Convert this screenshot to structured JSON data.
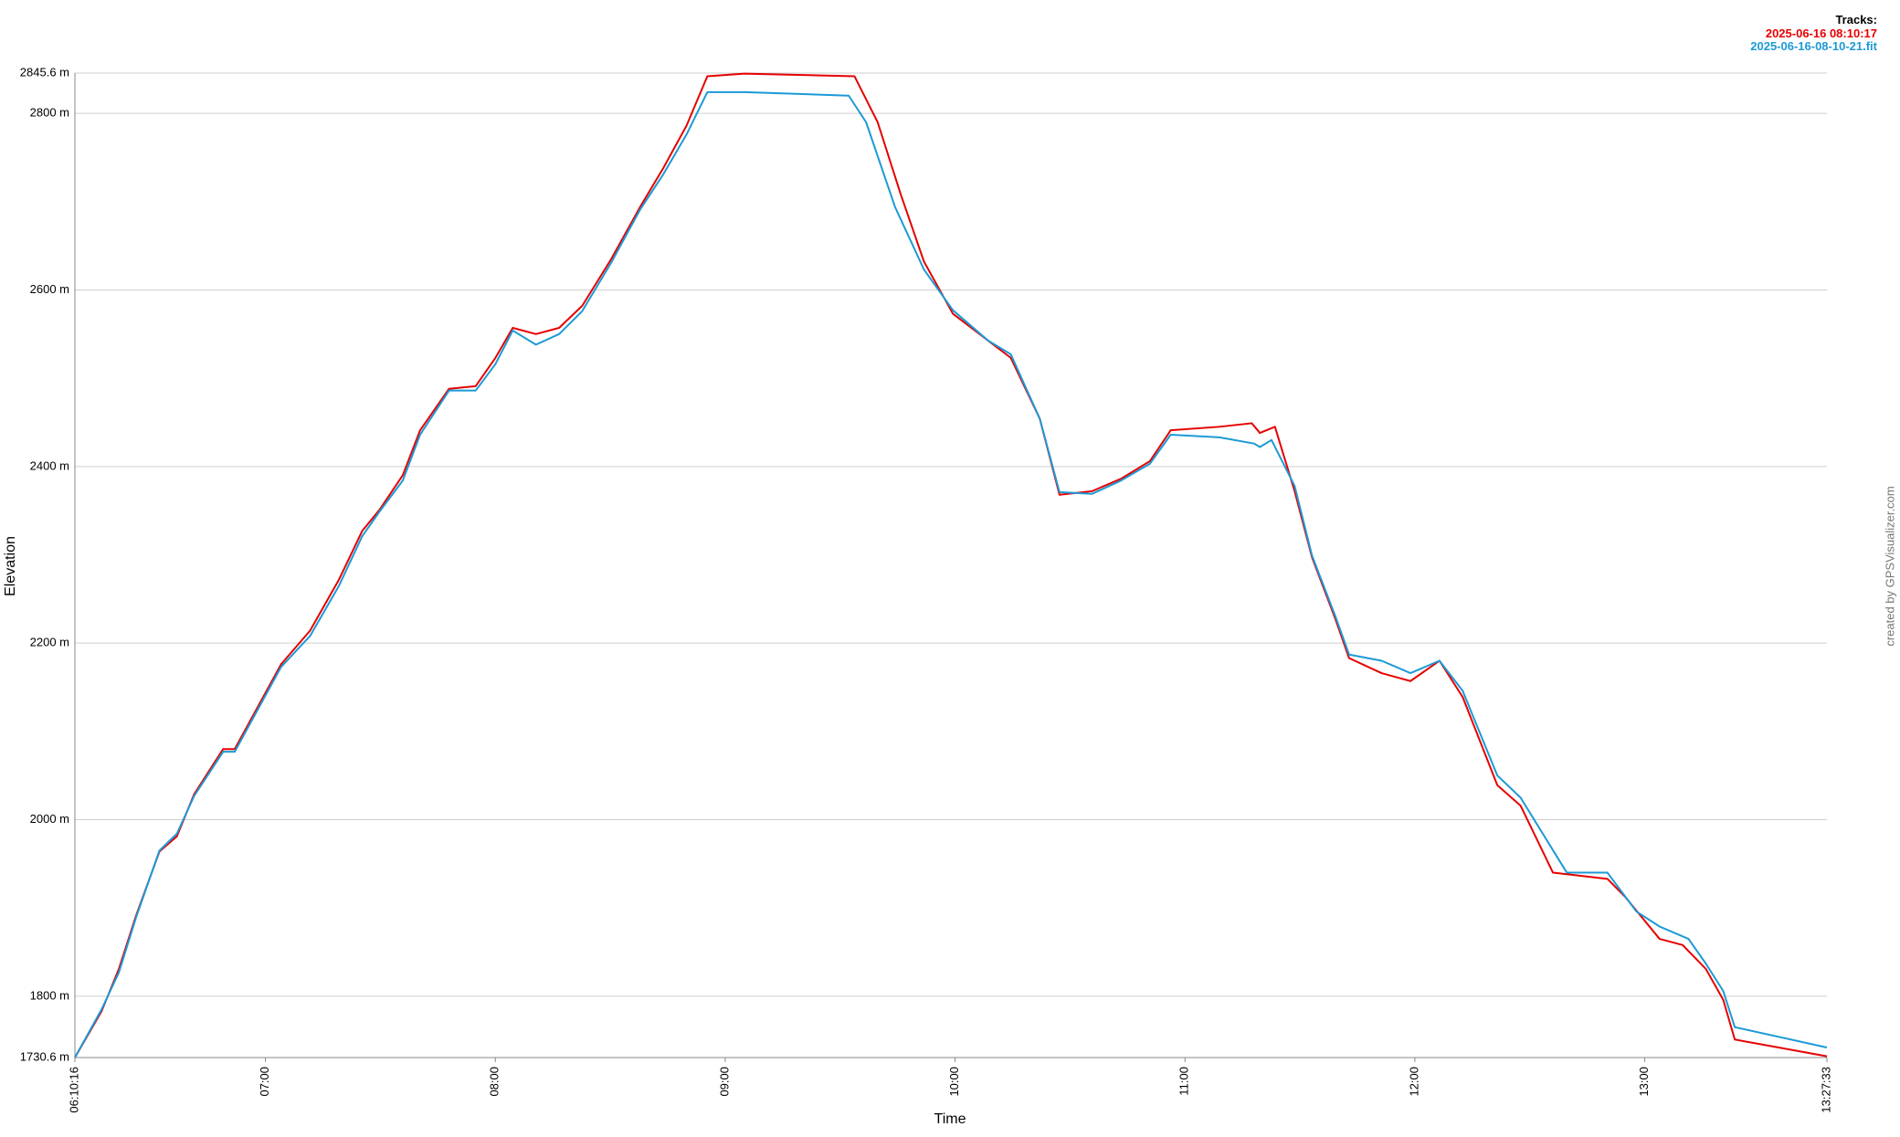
{
  "chart_data": {
    "type": "line",
    "x_label": "Time",
    "y_label": "Elevation",
    "legend_title": "Tracks:",
    "credit": "created by GPSVisualizer.com",
    "legend": "top-right",
    "grid": true,
    "xlim": [
      22216,
      49653
    ],
    "ylim": [
      1730.6,
      2845.6
    ],
    "xticks": [
      {
        "value": 22216,
        "label": "06:10:16"
      },
      {
        "value": 25200,
        "label": "07:00"
      },
      {
        "value": 28800,
        "label": "08:00"
      },
      {
        "value": 32400,
        "label": "09:00"
      },
      {
        "value": 36000,
        "label": "10:00"
      },
      {
        "value": 39600,
        "label": "11:00"
      },
      {
        "value": 43200,
        "label": "12:00"
      },
      {
        "value": 46800,
        "label": "13:00"
      },
      {
        "value": 49653,
        "label": "13:27:33"
      }
    ],
    "yticks": [
      {
        "value": 1730.6,
        "label": "1730.6 m"
      },
      {
        "value": 1800,
        "label": "1800 m"
      },
      {
        "value": 2000,
        "label": "2000 m"
      },
      {
        "value": 2200,
        "label": "2200 m"
      },
      {
        "value": 2400,
        "label": "2400 m"
      },
      {
        "value": 2600,
        "label": "2600 m"
      },
      {
        "value": 2800,
        "label": "2800 m"
      },
      {
        "value": 2845.6,
        "label": "2845.6 m"
      }
    ],
    "series": [
      {
        "name": "2025-06-16 08:10:17",
        "color": "#e60000",
        "x": [
          22216,
          22633,
          22905,
          23177,
          23540,
          23812,
          24084,
          24538,
          24719,
          25445,
          25898,
          26352,
          26715,
          26987,
          27350,
          27622,
          28075,
          28492,
          28801,
          29073,
          29436,
          29799,
          30161,
          30615,
          31068,
          31431,
          31794,
          32120,
          32701,
          34424,
          34787,
          35150,
          35513,
          35966,
          36510,
          36873,
          37327,
          37635,
          38143,
          38596,
          39050,
          39376,
          40138,
          40646,
          40773,
          41009,
          41317,
          41590,
          41952,
          42170,
          42678,
          43131,
          43585,
          43948,
          44492,
          44855,
          45363,
          46216,
          46488,
          47032,
          47394,
          47757,
          48029,
          48210,
          49653
        ],
        "values": [
          1730.6,
          1783,
          1831,
          1892,
          1964,
          1981,
          2029,
          2080,
          2080,
          2176,
          2214,
          2272,
          2327,
          2351,
          2390,
          2441,
          2488,
          2491,
          2523,
          2557,
          2550,
          2557,
          2582,
          2635,
          2694,
          2738,
          2786,
          2842,
          2845,
          2842,
          2790,
          2708,
          2632,
          2573,
          2543,
          2523,
          2454,
          2368,
          2372,
          2386,
          2406,
          2441,
          2445,
          2449,
          2438,
          2445,
          2372,
          2297,
          2228,
          2183,
          2166,
          2157,
          2180,
          2139,
          2039,
          2016,
          1940,
          1933,
          1913,
          1865,
          1858,
          1831,
          1796,
          1751,
          1732
        ]
      },
      {
        "name": "2025-06-16-08-10-21.fit",
        "color": "#1c9ad6",
        "x": [
          22216,
          22633,
          22905,
          23177,
          23540,
          23812,
          24084,
          24538,
          24719,
          25445,
          25898,
          26352,
          26715,
          26987,
          27350,
          27622,
          28075,
          28492,
          28801,
          29073,
          29436,
          29799,
          30161,
          30615,
          31068,
          31431,
          31794,
          32120,
          32701,
          34334,
          34606,
          35059,
          35513,
          35966,
          36510,
          36873,
          37327,
          37635,
          38143,
          38596,
          39050,
          39376,
          40138,
          40682,
          40773,
          40955,
          41317,
          41590,
          41952,
          42170,
          42678,
          43131,
          43585,
          43948,
          44492,
          44855,
          45580,
          46216,
          46669,
          47032,
          47485,
          47757,
          48029,
          48210,
          49653
        ],
        "values": [
          1730.6,
          1785,
          1827,
          1890,
          1965,
          1984,
          2027,
          2077,
          2077,
          2173,
          2208,
          2265,
          2321,
          2349,
          2384,
          2436,
          2486,
          2486,
          2516,
          2554,
          2538,
          2550,
          2576,
          2631,
          2691,
          2731,
          2776,
          2824,
          2824,
          2820,
          2790,
          2694,
          2623,
          2577,
          2543,
          2527,
          2454,
          2371,
          2369,
          2384,
          2403,
          2436,
          2433,
          2426,
          2422,
          2430,
          2378,
          2299,
          2231,
          2187,
          2180,
          2166,
          2180,
          2146,
          2050,
          2025,
          1940,
          1940,
          1896,
          1879,
          1865,
          1837,
          1806,
          1765,
          1742
        ]
      }
    ]
  }
}
